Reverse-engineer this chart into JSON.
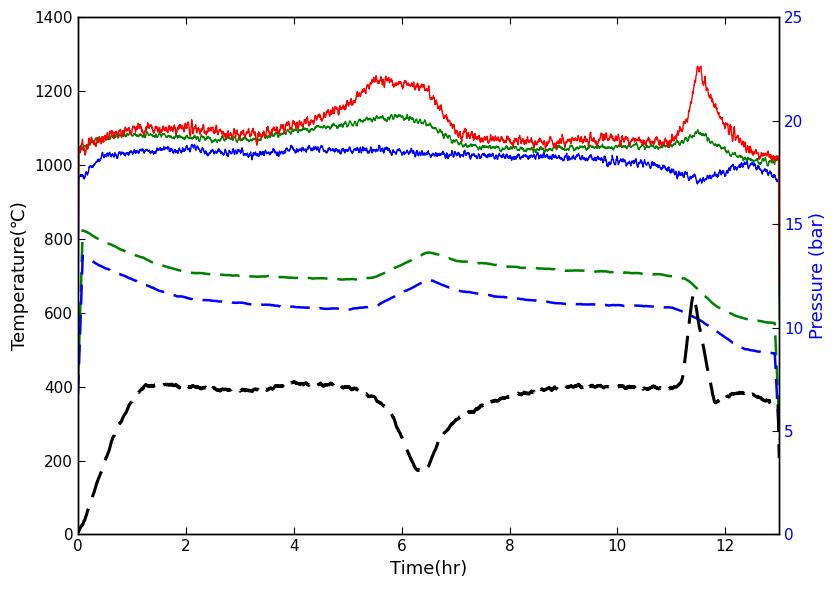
{
  "xlabel": "Time(hr)",
  "ylabel_left": "Temperature(℃)",
  "ylabel_right": "Pressure (bar)",
  "xlim": [
    0,
    13
  ],
  "ylim_left": [
    0,
    1400
  ],
  "ylim_right": [
    0,
    25
  ],
  "xticks": [
    0,
    2,
    4,
    6,
    8,
    10,
    12
  ],
  "yticks_left": [
    0,
    200,
    400,
    600,
    800,
    1000,
    1200,
    1400
  ],
  "yticks_right": [
    0,
    5,
    10,
    15,
    20,
    25
  ],
  "figsize": [
    8.38,
    5.89
  ],
  "dpi": 100,
  "background": "#ffffff",
  "lw_solid": 1.0,
  "lw_dash": 1.8,
  "lw_black_dash": 2.2
}
